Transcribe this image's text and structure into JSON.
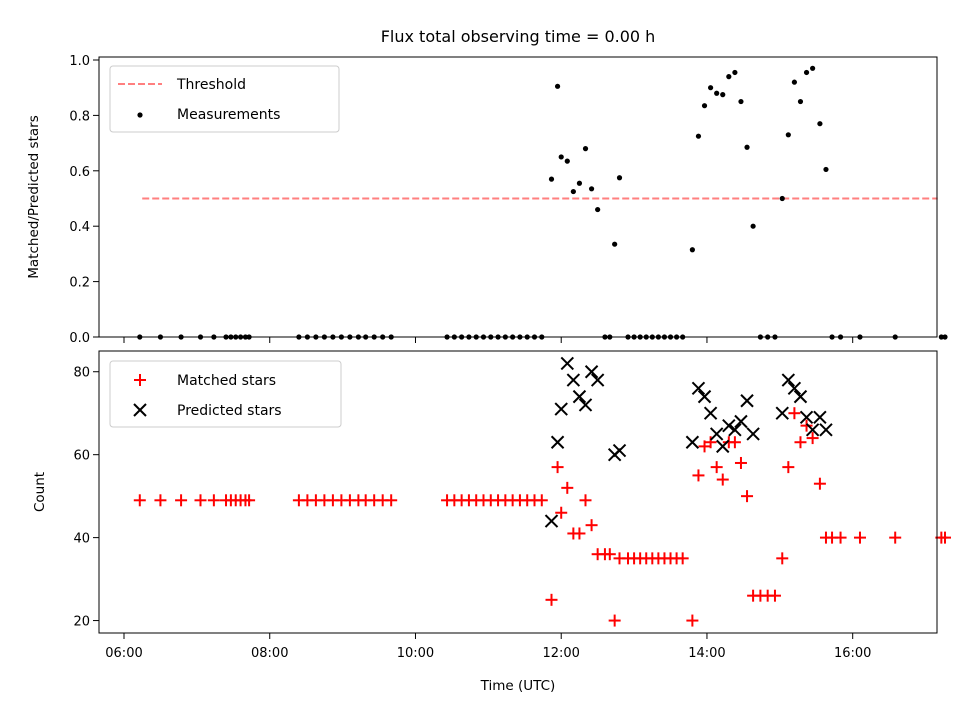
{
  "chart_data": [
    {
      "type": "scatter",
      "title": "Flux total observing time = 0.00 h",
      "xlabel": "",
      "ylabel": "Matched/Predicted stars",
      "ylim": [
        0,
        1.0
      ],
      "xlim": [
        "06:00",
        "17:30"
      ],
      "yticks": [
        "0.0",
        "0.2",
        "0.4",
        "0.6",
        "0.8",
        "1.0"
      ],
      "legend": [
        "Threshold",
        "Measurements"
      ],
      "legend_position": "top-left",
      "threshold": {
        "name": "Threshold",
        "y": 0.5,
        "x_start": "06:15",
        "x_end": "17:10",
        "color": "#ff7f7f"
      },
      "series": [
        {
          "name": "Measurements",
          "color": "#000000",
          "points": [
            [
              "06:13",
              0
            ],
            [
              "06:30",
              0
            ],
            [
              "06:47",
              0
            ],
            [
              "07:03",
              0
            ],
            [
              "07:14",
              0
            ],
            [
              "07:24",
              0
            ],
            [
              "07:28",
              0
            ],
            [
              "07:32",
              0
            ],
            [
              "07:36",
              0
            ],
            [
              "07:40",
              0
            ],
            [
              "07:43",
              0
            ],
            [
              "08:24",
              0
            ],
            [
              "08:31",
              0
            ],
            [
              "08:38",
              0
            ],
            [
              "08:45",
              0
            ],
            [
              "08:52",
              0
            ],
            [
              "08:59",
              0
            ],
            [
              "09:06",
              0
            ],
            [
              "09:13",
              0
            ],
            [
              "09:19",
              0
            ],
            [
              "09:26",
              0
            ],
            [
              "09:33",
              0
            ],
            [
              "09:40",
              0
            ],
            [
              "10:26",
              0
            ],
            [
              "10:32",
              0
            ],
            [
              "10:38",
              0
            ],
            [
              "10:44",
              0
            ],
            [
              "10:50",
              0
            ],
            [
              "10:56",
              0
            ],
            [
              "11:02",
              0
            ],
            [
              "11:08",
              0
            ],
            [
              "11:14",
              0
            ],
            [
              "11:20",
              0
            ],
            [
              "11:26",
              0
            ],
            [
              "11:32",
              0
            ],
            [
              "11:38",
              0
            ],
            [
              "11:44",
              0
            ],
            [
              "11:52",
              0.57
            ],
            [
              "11:57",
              0.905
            ],
            [
              "12:00",
              0.65
            ],
            [
              "12:05",
              0.635
            ],
            [
              "12:10",
              0.525
            ],
            [
              "12:15",
              0.555
            ],
            [
              "12:20",
              0.68
            ],
            [
              "12:25",
              0.535
            ],
            [
              "12:30",
              0.46
            ],
            [
              "12:36",
              0
            ],
            [
              "12:40",
              0
            ],
            [
              "12:44",
              0.335
            ],
            [
              "12:48",
              0.575
            ],
            [
              "12:55",
              0
            ],
            [
              "13:00",
              0
            ],
            [
              "13:05",
              0
            ],
            [
              "13:10",
              0
            ],
            [
              "13:15",
              0
            ],
            [
              "13:20",
              0
            ],
            [
              "13:25",
              0
            ],
            [
              "13:30",
              0
            ],
            [
              "13:35",
              0
            ],
            [
              "13:40",
              0
            ],
            [
              "13:48",
              0.315
            ],
            [
              "13:53",
              0.725
            ],
            [
              "13:58",
              0.835
            ],
            [
              "14:03",
              0.9
            ],
            [
              "14:08",
              0.88
            ],
            [
              "14:13",
              0.875
            ],
            [
              "14:18",
              0.94
            ],
            [
              "14:23",
              0.955
            ],
            [
              "14:28",
              0.85
            ],
            [
              "14:33",
              0.685
            ],
            [
              "14:38",
              0.4
            ],
            [
              "14:44",
              0
            ],
            [
              "14:50",
              0
            ],
            [
              "14:56",
              0
            ],
            [
              "15:02",
              0.5
            ],
            [
              "15:07",
              0.73
            ],
            [
              "15:12",
              0.92
            ],
            [
              "15:17",
              0.85
            ],
            [
              "15:22",
              0.955
            ],
            [
              "15:27",
              0.97
            ],
            [
              "15:33",
              0.77
            ],
            [
              "15:38",
              0.605
            ],
            [
              "15:43",
              0
            ],
            [
              "15:50",
              0
            ],
            [
              "16:06",
              0
            ],
            [
              "16:35",
              0
            ],
            [
              "17:13",
              0
            ],
            [
              "17:16",
              0
            ]
          ]
        }
      ]
    },
    {
      "type": "scatter",
      "title": "",
      "xlabel": "Time (UTC)",
      "ylabel": "Count",
      "ylim": [
        17,
        85
      ],
      "xlim": [
        "06:00",
        "17:30"
      ],
      "yticks": [
        "20",
        "40",
        "60",
        "80"
      ],
      "xticks": [
        "06:00",
        "08:00",
        "10:00",
        "12:00",
        "14:00",
        "16:00"
      ],
      "legend": [
        "Matched stars",
        "Predicted stars"
      ],
      "legend_position": "top-left",
      "series": [
        {
          "name": "Matched stars",
          "marker": "+",
          "color": "#ff0000",
          "points": [
            [
              "06:13",
              49
            ],
            [
              "06:30",
              49
            ],
            [
              "06:47",
              49
            ],
            [
              "07:03",
              49
            ],
            [
              "07:14",
              49
            ],
            [
              "07:24",
              49
            ],
            [
              "07:28",
              49
            ],
            [
              "07:32",
              49
            ],
            [
              "07:36",
              49
            ],
            [
              "07:40",
              49
            ],
            [
              "07:43",
              49
            ],
            [
              "08:24",
              49
            ],
            [
              "08:31",
              49
            ],
            [
              "08:38",
              49
            ],
            [
              "08:45",
              49
            ],
            [
              "08:52",
              49
            ],
            [
              "08:59",
              49
            ],
            [
              "09:06",
              49
            ],
            [
              "09:13",
              49
            ],
            [
              "09:19",
              49
            ],
            [
              "09:26",
              49
            ],
            [
              "09:33",
              49
            ],
            [
              "09:40",
              49
            ],
            [
              "10:26",
              49
            ],
            [
              "10:32",
              49
            ],
            [
              "10:38",
              49
            ],
            [
              "10:44",
              49
            ],
            [
              "10:50",
              49
            ],
            [
              "10:56",
              49
            ],
            [
              "11:02",
              49
            ],
            [
              "11:08",
              49
            ],
            [
              "11:14",
              49
            ],
            [
              "11:20",
              49
            ],
            [
              "11:26",
              49
            ],
            [
              "11:32",
              49
            ],
            [
              "11:38",
              49
            ],
            [
              "11:44",
              49
            ],
            [
              "11:52",
              25
            ],
            [
              "11:57",
              57
            ],
            [
              "12:00",
              46
            ],
            [
              "12:05",
              52
            ],
            [
              "12:10",
              41
            ],
            [
              "12:15",
              41
            ],
            [
              "12:20",
              49
            ],
            [
              "12:25",
              43
            ],
            [
              "12:30",
              36
            ],
            [
              "12:36",
              36
            ],
            [
              "12:40",
              36
            ],
            [
              "12:44",
              20
            ],
            [
              "12:48",
              35
            ],
            [
              "12:55",
              35
            ],
            [
              "13:00",
              35
            ],
            [
              "13:05",
              35
            ],
            [
              "13:10",
              35
            ],
            [
              "13:15",
              35
            ],
            [
              "13:20",
              35
            ],
            [
              "13:25",
              35
            ],
            [
              "13:30",
              35
            ],
            [
              "13:35",
              35
            ],
            [
              "13:40",
              35
            ],
            [
              "13:48",
              20
            ],
            [
              "13:53",
              55
            ],
            [
              "13:58",
              62
            ],
            [
              "14:03",
              63
            ],
            [
              "14:08",
              57
            ],
            [
              "14:13",
              54
            ],
            [
              "14:18",
              63
            ],
            [
              "14:23",
              63
            ],
            [
              "14:28",
              58
            ],
            [
              "14:33",
              50
            ],
            [
              "14:38",
              26
            ],
            [
              "14:44",
              26
            ],
            [
              "14:50",
              26
            ],
            [
              "14:56",
              26
            ],
            [
              "15:02",
              35
            ],
            [
              "15:07",
              57
            ],
            [
              "15:12",
              70
            ],
            [
              "15:17",
              63
            ],
            [
              "15:22",
              67
            ],
            [
              "15:27",
              64
            ],
            [
              "15:33",
              53
            ],
            [
              "15:38",
              40
            ],
            [
              "15:43",
              40
            ],
            [
              "15:50",
              40
            ],
            [
              "16:06",
              40
            ],
            [
              "16:35",
              40
            ],
            [
              "17:13",
              40
            ],
            [
              "17:16",
              40
            ]
          ]
        },
        {
          "name": "Predicted stars",
          "marker": "x",
          "color": "#000000",
          "points": [
            [
              "11:52",
              44
            ],
            [
              "11:57",
              63
            ],
            [
              "12:00",
              71
            ],
            [
              "12:05",
              82
            ],
            [
              "12:10",
              78
            ],
            [
              "12:15",
              74
            ],
            [
              "12:20",
              72
            ],
            [
              "12:25",
              80
            ],
            [
              "12:30",
              78
            ],
            [
              "12:44",
              60
            ],
            [
              "12:48",
              61
            ],
            [
              "13:48",
              63
            ],
            [
              "13:53",
              76
            ],
            [
              "13:58",
              74
            ],
            [
              "14:03",
              70
            ],
            [
              "14:08",
              65
            ],
            [
              "14:13",
              62
            ],
            [
              "14:18",
              67
            ],
            [
              "14:23",
              66
            ],
            [
              "14:28",
              68
            ],
            [
              "14:33",
              73
            ],
            [
              "14:38",
              65
            ],
            [
              "15:02",
              70
            ],
            [
              "15:07",
              78
            ],
            [
              "15:12",
              76
            ],
            [
              "15:17",
              74
            ],
            [
              "15:22",
              69
            ],
            [
              "15:27",
              66
            ],
            [
              "15:33",
              69
            ],
            [
              "15:38",
              66
            ]
          ]
        }
      ]
    }
  ]
}
